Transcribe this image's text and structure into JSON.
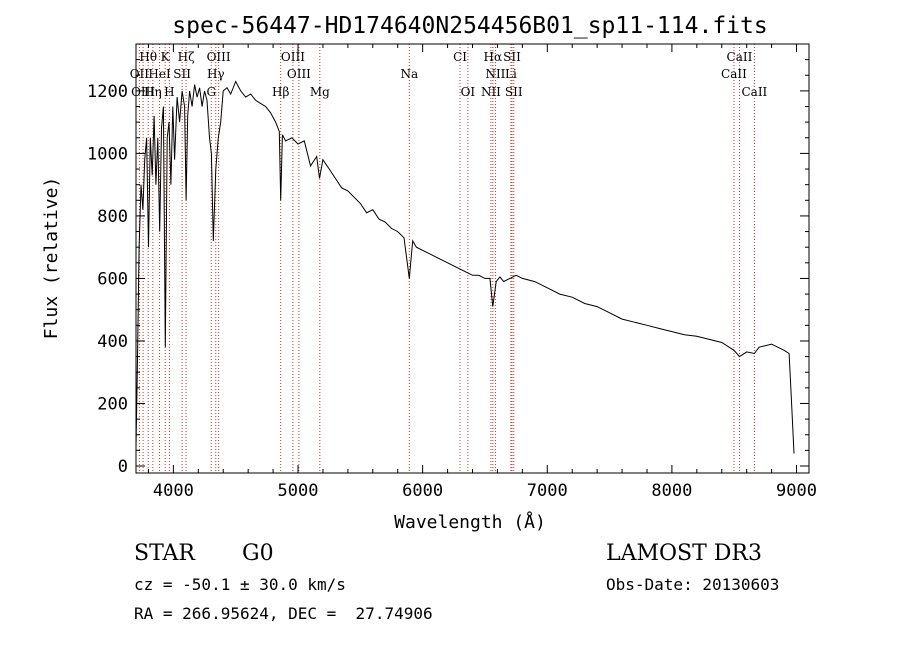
{
  "chart_data": {
    "type": "line",
    "title": "spec-56447-HD174640N254456B01_sp11-114.fits",
    "xlabel": "Wavelength (Å)",
    "ylabel": "Flux (relative)",
    "xlim": [
      3700,
      9100
    ],
    "ylim": [
      0,
      1350
    ],
    "xticks": [
      4000,
      5000,
      6000,
      7000,
      8000,
      9000
    ],
    "yticks": [
      0,
      200,
      400,
      600,
      800,
      1000,
      1200
    ],
    "series": [
      {
        "name": "flux",
        "x": [
          3700,
          3710,
          3725,
          3740,
          3755,
          3770,
          3785,
          3800,
          3815,
          3830,
          3845,
          3860,
          3875,
          3890,
          3905,
          3920,
          3935,
          3950,
          3965,
          3980,
          3995,
          4010,
          4030,
          4050,
          4070,
          4090,
          4102,
          4115,
          4130,
          4150,
          4170,
          4190,
          4210,
          4230,
          4250,
          4270,
          4290,
          4305,
          4320,
          4340,
          4360,
          4380,
          4400,
          4430,
          4460,
          4500,
          4540,
          4580,
          4620,
          4660,
          4700,
          4740,
          4780,
          4820,
          4850,
          4861,
          4875,
          4900,
          4950,
          5000,
          5050,
          5100,
          5150,
          5172,
          5200,
          5250,
          5300,
          5350,
          5400,
          5450,
          5500,
          5550,
          5600,
          5650,
          5700,
          5750,
          5800,
          5850,
          5893,
          5920,
          5950,
          6000,
          6050,
          6100,
          6150,
          6200,
          6250,
          6300,
          6350,
          6400,
          6450,
          6500,
          6540,
          6563,
          6590,
          6620,
          6650,
          6700,
          6750,
          6800,
          6900,
          7000,
          7100,
          7200,
          7300,
          7400,
          7500,
          7600,
          7700,
          7800,
          7900,
          8000,
          8100,
          8200,
          8300,
          8400,
          8498,
          8542,
          8600,
          8662,
          8700,
          8800,
          8850,
          8900,
          8940,
          8960,
          8980
        ],
        "values": [
          60,
          280,
          700,
          900,
          820,
          980,
          1050,
          700,
          1050,
          930,
          1120,
          900,
          1050,
          750,
          1080,
          1150,
          380,
          1050,
          1100,
          900,
          1150,
          980,
          1180,
          1100,
          1200,
          1150,
          850,
          1120,
          1200,
          1150,
          1220,
          1180,
          1210,
          1150,
          1200,
          1170,
          1050,
          1000,
          720,
          950,
          1050,
          1100,
          1200,
          1210,
          1190,
          1230,
          1200,
          1180,
          1190,
          1170,
          1160,
          1150,
          1130,
          1100,
          1070,
          850,
          1060,
          1040,
          1050,
          1030,
          1040,
          960,
          990,
          920,
          980,
          950,
          920,
          890,
          880,
          860,
          840,
          810,
          820,
          790,
          780,
          760,
          750,
          730,
          600,
          720,
          700,
          690,
          680,
          670,
          660,
          650,
          640,
          630,
          620,
          610,
          610,
          600,
          600,
          510,
          590,
          605,
          590,
          600,
          610,
          600,
          590,
          570,
          550,
          540,
          520,
          510,
          490,
          470,
          460,
          450,
          440,
          430,
          420,
          415,
          405,
          395,
          370,
          350,
          365,
          360,
          380,
          390,
          380,
          370,
          360,
          200,
          40
        ]
      }
    ],
    "lines": {
      "top": [
        {
          "label": "Hθ",
          "x": 3798
        },
        {
          "label": "K",
          "x": 3934
        },
        {
          "label": "Hζ",
          "x": 4102
        },
        {
          "label": "OIII",
          "x": 4363
        },
        {
          "label": "OIII",
          "x": 4959
        },
        {
          "label": "CI",
          "x": 6300
        },
        {
          "label": "Hα",
          "x": 6563
        },
        {
          "label": "SII",
          "x": 6717
        },
        {
          "label": "CaII",
          "x": 8542
        }
      ],
      "middle": [
        {
          "label": "OII",
          "x": 3727
        },
        {
          "label": "HeI",
          "x": 3889
        },
        {
          "label": "SII",
          "x": 4070
        },
        {
          "label": "Hγ",
          "x": 4340
        },
        {
          "label": "OIII",
          "x": 5007
        },
        {
          "label": "Na",
          "x": 5893
        },
        {
          "label": "NII",
          "x": 6584
        },
        {
          "label": "Li",
          "x": 6708
        },
        {
          "label": "CaII",
          "x": 8498
        }
      ],
      "bottom": [
        {
          "label": "OIII",
          "x": 3757
        },
        {
          "label": "Hη",
          "x": 3835
        },
        {
          "label": "H",
          "x": 3968
        },
        {
          "label": "G",
          "x": 4304
        },
        {
          "label": "Hβ",
          "x": 4861
        },
        {
          "label": "Mg",
          "x": 5175
        },
        {
          "label": "OI",
          "x": 6363
        },
        {
          "label": "NII",
          "x": 6548
        },
        {
          "label": "SII",
          "x": 6731
        },
        {
          "label": "CaII",
          "x": 8662
        }
      ]
    }
  },
  "info": {
    "class": "STAR",
    "subclass": "G0",
    "survey": "LAMOST DR3",
    "cz": "cz = -50.1 ± 30.0 km/s",
    "obs_date": "Obs-Date: 20130603",
    "coords": "RA = 266.95624, DEC =  27.74906"
  }
}
